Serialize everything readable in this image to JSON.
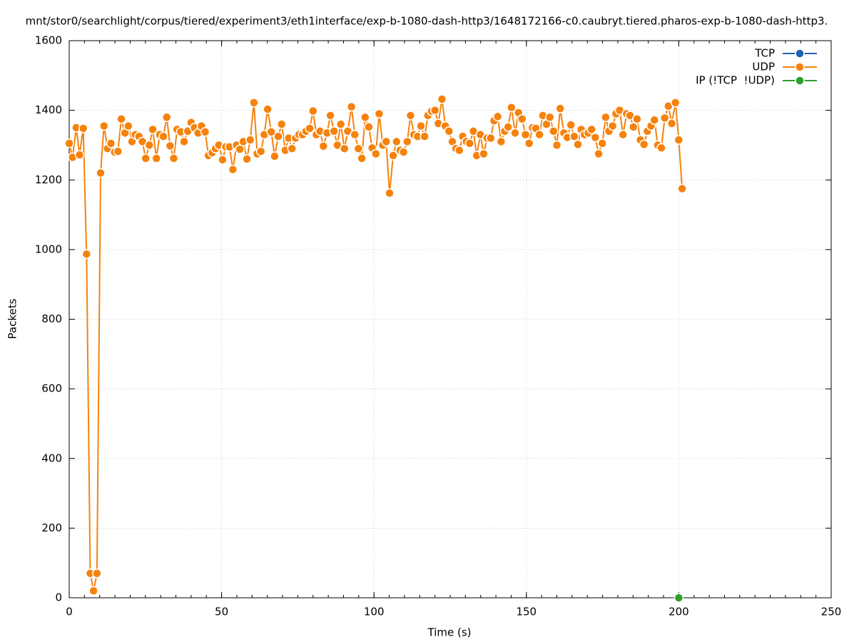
{
  "chart_data": {
    "type": "line",
    "title": "mnt/stor0/searchlight/corpus/tiered/experiment3/eth1interface/exp-b-1080-dash-http3/1648172166-c0.caubryt.tiered.pharos-exp-b-1080-dash-http3.",
    "xlabel": "Time (s)",
    "ylabel": "Packets",
    "xlim": [
      0,
      250
    ],
    "xticks": [
      0,
      50,
      100,
      150,
      200,
      250
    ],
    "ylim": [
      0,
      1600
    ],
    "yticks": [
      0,
      200,
      400,
      600,
      800,
      1000,
      1200,
      1400,
      1600
    ],
    "grid": true,
    "legend": "top-right",
    "series": [
      {
        "name": "TCP",
        "color": "#1f63b0",
        "x": [],
        "values": []
      },
      {
        "name": "UDP",
        "color": "#f5820d",
        "x": [
          0,
          1.1,
          2.3,
          3.4,
          4.6,
          5.7,
          6.9,
          8,
          9.1,
          10.3,
          11.4,
          12.6,
          13.7,
          14.9,
          16,
          17.1,
          18.3,
          19.4,
          20.6,
          21.7,
          22.9,
          24,
          25.1,
          26.3,
          27.4,
          28.6,
          29.7,
          30.9,
          32,
          33.1,
          34.3,
          35.4,
          36.6,
          37.7,
          38.9,
          40,
          41.1,
          42.3,
          43.4,
          44.6,
          45.7,
          46.9,
          48,
          49.1,
          50.3,
          51.4,
          52.6,
          53.7,
          54.9,
          56,
          57.1,
          58.3,
          59.4,
          60.6,
          61.7,
          62.9,
          64,
          65.1,
          66.3,
          67.4,
          68.6,
          69.7,
          70.9,
          72,
          73.1,
          74.3,
          75.4,
          76.6,
          77.7,
          78.9,
          80,
          81.1,
          82.3,
          83.4,
          84.6,
          85.7,
          86.9,
          88,
          89.1,
          90.3,
          91.4,
          92.6,
          93.7,
          94.9,
          96,
          97.1,
          98.3,
          99.4,
          100.6,
          101.7,
          102.9,
          104,
          105.1,
          106.3,
          107.4,
          108.6,
          109.7,
          110.9,
          112,
          113.1,
          114.3,
          115.4,
          116.6,
          117.7,
          118.9,
          120,
          121.1,
          122.3,
          123.4,
          124.6,
          125.7,
          126.9,
          128,
          129.1,
          130.3,
          131.4,
          132.6,
          133.7,
          134.9,
          136,
          137.1,
          138.3,
          139.4,
          140.6,
          141.7,
          142.9,
          144,
          145.1,
          146.3,
          147.4,
          148.6,
          149.7,
          150.9,
          152,
          153.1,
          154.3,
          155.4,
          156.6,
          157.7,
          158.9,
          160,
          161.1,
          162.3,
          163.4,
          164.6,
          165.7,
          166.9,
          168,
          169.1,
          170.3,
          171.4,
          172.6,
          173.7,
          174.9,
          176,
          177.1,
          178.3,
          179.4,
          180.6,
          181.7,
          182.9,
          184,
          185.1,
          186.3,
          187.4,
          188.6,
          189.7,
          190.9,
          192,
          193.1,
          194.3,
          195.4,
          196.6,
          197.7,
          198.9,
          200,
          201.1
        ],
        "values": [
          1305,
          1265,
          1350,
          1272,
          1348,
          987,
          70,
          20,
          70,
          1220,
          1355,
          1290,
          1305,
          1280,
          1282,
          1375,
          1335,
          1355,
          1310,
          1330,
          1325,
          1310,
          1262,
          1300,
          1345,
          1262,
          1330,
          1325,
          1380,
          1298,
          1262,
          1345,
          1338,
          1310,
          1340,
          1365,
          1350,
          1335,
          1355,
          1338,
          1270,
          1278,
          1290,
          1300,
          1258,
          1295,
          1295,
          1230,
          1300,
          1288,
          1310,
          1260,
          1315,
          1422,
          1275,
          1282,
          1330,
          1403,
          1338,
          1268,
          1325,
          1360,
          1285,
          1320,
          1290,
          1320,
          1330,
          1330,
          1340,
          1348,
          1398,
          1330,
          1340,
          1297,
          1335,
          1385,
          1340,
          1300,
          1360,
          1290,
          1340,
          1410,
          1330,
          1290,
          1262,
          1380,
          1352,
          1292,
          1275,
          1390,
          1300,
          1310,
          1162,
          1270,
          1310,
          1285,
          1280,
          1310,
          1385,
          1330,
          1325,
          1355,
          1325,
          1385,
          1397,
          1400,
          1362,
          1432,
          1355,
          1340,
          1310,
          1290,
          1285,
          1325,
          1310,
          1305,
          1340,
          1270,
          1330,
          1275,
          1320,
          1320,
          1370,
          1382,
          1310,
          1340,
          1352,
          1408,
          1335,
          1393,
          1375,
          1330,
          1305,
          1350,
          1348,
          1330,
          1385,
          1360,
          1380,
          1340,
          1300,
          1405,
          1335,
          1322,
          1358,
          1325,
          1302,
          1345,
          1330,
          1335,
          1345,
          1322,
          1275,
          1305,
          1380,
          1340,
          1355,
          1390,
          1400,
          1330,
          1390,
          1385,
          1352,
          1375,
          1315,
          1302,
          1340,
          1355,
          1372,
          1300,
          1292,
          1378,
          1412,
          1362,
          1422,
          1315,
          1175
        ]
      },
      {
        "name": "IP (!TCP  !UDP)",
        "color": "#2ca02c",
        "x": [
          200
        ],
        "values": [
          0
        ]
      }
    ]
  }
}
